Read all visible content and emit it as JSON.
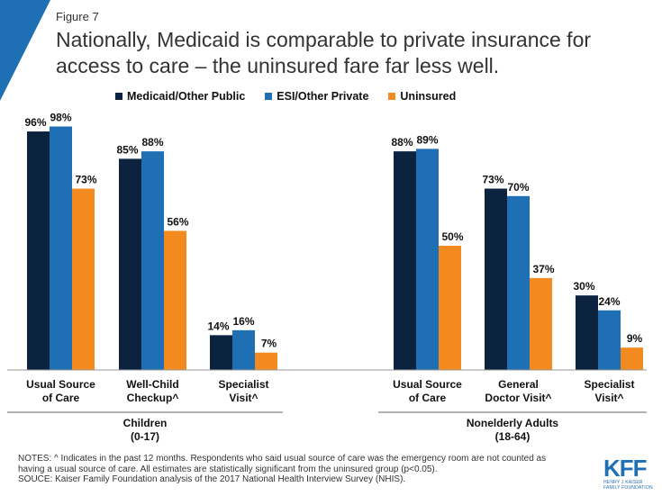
{
  "figure_label": "Figure 7",
  "title": "Nationally, Medicaid is comparable to private insurance for access to care – the uninsured fare far less well.",
  "colors": {
    "accent": "#1f6fb5",
    "medicaid": "#0c2340",
    "esi": "#1f6fb5",
    "uninsured": "#f28a20"
  },
  "chart_data": {
    "type": "bar",
    "ylim": [
      0,
      100
    ],
    "grid": false,
    "legend_position": "top",
    "categories": [
      "Usual Source of Care",
      "Well-Child Checkup^",
      "Specialist Visit^",
      "Usual Source of Care",
      "General Doctor Visit^",
      "Specialist Visit^"
    ],
    "category_lines": [
      [
        "Usual Source",
        "of Care"
      ],
      [
        "Well-Child",
        "Checkup^"
      ],
      [
        "Specialist",
        "Visit^"
      ],
      [
        "Usual Source",
        "of Care"
      ],
      [
        "General",
        "Doctor Visit^"
      ],
      [
        "Specialist",
        "Visit^"
      ]
    ],
    "groups": [
      {
        "lines": [
          "Children",
          "(0-17)"
        ]
      },
      {
        "lines": [
          "Nonelderly Adults",
          "(18-64)"
        ]
      }
    ],
    "series": [
      {
        "name": "Medicaid/Other Public",
        "color": "#0c2340",
        "values": [
          96,
          85,
          14,
          88,
          73,
          30
        ]
      },
      {
        "name": "ESI/Other Private",
        "color": "#1f6fb5",
        "values": [
          98,
          88,
          16,
          89,
          70,
          24
        ]
      },
      {
        "name": "Uninsured",
        "color": "#f28a20",
        "values": [
          73,
          56,
          7,
          50,
          37,
          9
        ]
      }
    ]
  },
  "notes": [
    "NOTES: ^ Indicates in the past 12 months. Respondents who said usual source of care was the emergency room are not counted as",
    "having a usual source of care. All estimates are statistically significant from the uninsured group (p<0.05).",
    "SOUCE: Kaiser Family Foundation analysis of the 2017 National Health Interview Survey (NHIS)."
  ],
  "logo": {
    "mark": "KFF",
    "subtitle": "HENRY J KAISER FAMILY FOUNDATION"
  }
}
